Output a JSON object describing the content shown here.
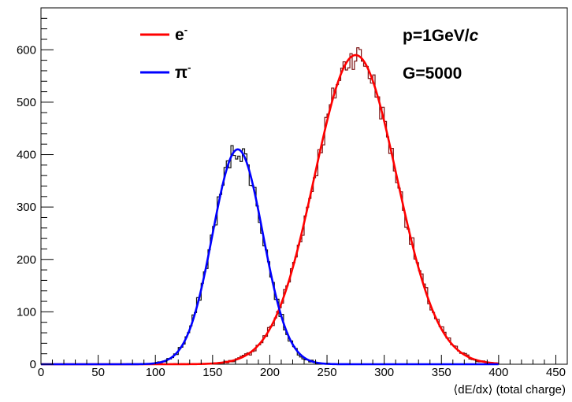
{
  "chart_data": {
    "type": "histogram",
    "xlabel": "⟨dE/dx⟩ (total charge)",
    "ylabel": "",
    "xlim": [
      0,
      460
    ],
    "ylim": [
      0,
      680
    ],
    "x_ticks": [
      0,
      50,
      100,
      150,
      200,
      250,
      300,
      350,
      400,
      450
    ],
    "y_ticks": [
      0,
      100,
      200,
      300,
      400,
      500,
      600
    ],
    "grid": false,
    "legend_position": "top-left",
    "bin_width": 2,
    "annotations": [
      {
        "text": "p=1GeV/",
        "italic_suffix": "c"
      },
      {
        "text": "G=5000"
      }
    ],
    "series": [
      {
        "name": "e",
        "superscript": "-",
        "color": "#ff0000",
        "histogram_color": "#7a1010",
        "fit": {
          "function": "gaussian",
          "amplitude": 590,
          "mean": 275,
          "sigma": 36
        },
        "range": [
          110,
          400
        ]
      },
      {
        "name": "π",
        "superscript": "-",
        "color": "#0000ff",
        "histogram_color": "#111111",
        "fit": {
          "function": "gaussian",
          "amplitude": 410,
          "mean": 172,
          "sigma": 22
        },
        "range": [
          100,
          260
        ]
      }
    ]
  }
}
